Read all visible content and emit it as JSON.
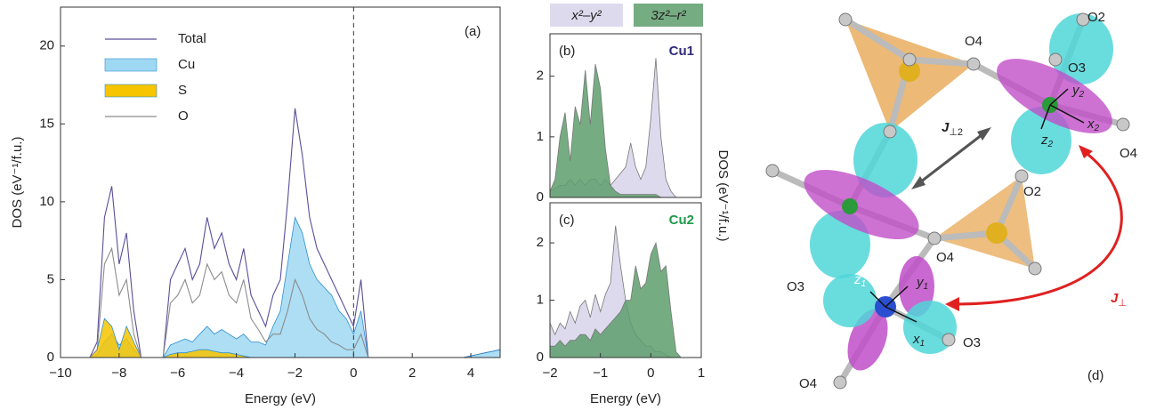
{
  "chart_data": [
    {
      "type": "area",
      "x_label": "Energy (eV)",
      "y_label": "DOS (eV⁻¹/f.u.)",
      "annotation": "(a)",
      "x": [
        -10,
        -9.75,
        -9.5,
        -9.25,
        -9,
        -8.75,
        -8.5,
        -8.25,
        -8,
        -7.75,
        -7.5,
        -7.25,
        -7,
        -6.75,
        -6.5,
        -6.25,
        -6,
        -5.75,
        -5.5,
        -5.25,
        -5,
        -4.75,
        -4.5,
        -4.25,
        -4,
        -3.75,
        -3.5,
        -3.25,
        -3,
        -2.75,
        -2.5,
        -2.25,
        -2,
        -1.75,
        -1.5,
        -1.25,
        -1,
        -0.75,
        -0.5,
        -0.25,
        0,
        0.25,
        0.5,
        0.75,
        1,
        1.25,
        1.5,
        1.75,
        2,
        2.25,
        2.5,
        2.75,
        3,
        3.25,
        3.5,
        3.75,
        4,
        4.25,
        4.5,
        4.75,
        5
      ],
      "series": [
        {
          "name": "Total",
          "color": "#5a4e9a",
          "fill": false,
          "values": [
            0,
            0,
            0,
            0,
            0,
            1,
            9,
            11,
            6,
            8,
            3,
            0,
            0,
            0,
            0,
            5,
            6,
            7,
            5,
            6,
            9,
            7,
            8,
            6,
            5,
            7,
            4,
            3,
            2,
            4,
            5,
            10,
            16,
            13,
            9,
            7,
            6,
            5,
            4,
            3,
            2,
            5,
            0,
            0,
            0,
            0,
            0,
            0,
            0,
            0,
            0,
            0,
            0,
            0,
            0,
            0,
            0.1,
            0.2,
            0.3,
            0.4,
            0.5
          ]
        },
        {
          "name": "Cu",
          "color": "#9fd8f2",
          "fill": true,
          "values": [
            0,
            0,
            0,
            0,
            0,
            0.2,
            1,
            1.5,
            0.8,
            1.2,
            0.5,
            0,
            0,
            0,
            0,
            0.8,
            1,
            1.2,
            1,
            1.5,
            2,
            1.5,
            1.8,
            1.5,
            1.2,
            1.5,
            1,
            1,
            0.8,
            2,
            3,
            6,
            9,
            8,
            6,
            5,
            4.5,
            4,
            3,
            2.5,
            1.5,
            3,
            0,
            0,
            0,
            0,
            0,
            0,
            0,
            0,
            0,
            0,
            0,
            0,
            0,
            0,
            0.1,
            0.2,
            0.3,
            0.4,
            0.5
          ]
        },
        {
          "name": "S",
          "color": "#f7c400",
          "fill": true,
          "values": [
            0,
            0,
            0,
            0,
            0,
            0.5,
            2.5,
            2,
            0.5,
            2,
            1,
            0,
            0,
            0,
            0,
            0.2,
            0.3,
            0.3,
            0.4,
            0.5,
            0.5,
            0.4,
            0.3,
            0.3,
            0.2,
            0.1,
            0,
            0,
            0,
            0,
            0,
            0,
            0,
            0,
            0,
            0,
            0,
            0,
            0,
            0,
            0,
            0,
            0,
            0,
            0,
            0,
            0,
            0,
            0,
            0,
            0,
            0,
            0,
            0,
            0,
            0,
            0,
            0,
            0,
            0,
            0
          ]
        },
        {
          "name": "O",
          "color": "#8c8c8c",
          "fill": false,
          "values": [
            0,
            0,
            0,
            0,
            0,
            0.5,
            6,
            7,
            4,
            5,
            1.5,
            0,
            0,
            0,
            0,
            3.5,
            4,
            5,
            3.5,
            4,
            6,
            5,
            5.5,
            4,
            3.5,
            5,
            2.5,
            1.8,
            1,
            1.5,
            1.5,
            3,
            5,
            4,
            2.5,
            1.8,
            1.5,
            1,
            0.8,
            0.5,
            0.5,
            1.5,
            0,
            0,
            0,
            0,
            0,
            0,
            0,
            0,
            0,
            0,
            0,
            0,
            0,
            0,
            0,
            0,
            0,
            0,
            0
          ]
        }
      ],
      "reference_line_x": 0,
      "xlim": [
        -10,
        5
      ],
      "ylim": [
        0,
        22.5
      ],
      "xticks": [
        {
          "value": -10,
          "label": "−10"
        },
        {
          "value": -8,
          "label": "−8"
        },
        {
          "value": -6,
          "label": "−6"
        },
        {
          "value": -4,
          "label": "−4"
        },
        {
          "value": -2,
          "label": "−2"
        },
        0,
        2,
        4
      ],
      "yticks": [
        0,
        5,
        10,
        15,
        20
      ],
      "legend": "upper left"
    },
    {
      "type": "area",
      "y_label": "DOS (eV⁻¹/f.u.)",
      "annotation": "(b)",
      "site": "Cu1",
      "site_color": "#2e2a7a",
      "x": [
        -2,
        -1.9,
        -1.8,
        -1.7,
        -1.6,
        -1.5,
        -1.4,
        -1.3,
        -1.2,
        -1.1,
        -1,
        -0.9,
        -0.8,
        -0.7,
        -0.6,
        -0.5,
        -0.4,
        -0.3,
        -0.2,
        -0.1,
        0,
        0.1,
        0.2,
        0.3,
        0.4,
        0.5,
        0.6,
        0.7,
        0.8,
        0.9,
        1
      ],
      "series": [
        {
          "name": "x²–y²",
          "color": "#d8d3ea",
          "fill": true,
          "values": [
            0.1,
            0.15,
            0.2,
            0.2,
            0.3,
            0.2,
            0.3,
            0.2,
            0.3,
            0.3,
            0.2,
            0.3,
            0.2,
            0.3,
            0.4,
            0.5,
            0.9,
            0.5,
            0.3,
            0.5,
            1.3,
            2.3,
            1,
            0.3,
            0.1,
            0,
            0,
            0,
            0,
            0,
            0
          ]
        },
        {
          "name": "3z²–r²",
          "color": "#5e9e6c",
          "fill": true,
          "values": [
            0.1,
            0.3,
            1,
            1.4,
            0.6,
            1.5,
            1.2,
            2.1,
            1.2,
            2.2,
            1.8,
            0.8,
            0.2,
            0.1,
            0.05,
            0.05,
            0.05,
            0.05,
            0.05,
            0.05,
            0.05,
            0.05,
            0,
            0,
            0,
            0,
            0,
            0,
            0,
            0,
            0
          ]
        }
      ],
      "xlim": [
        -2,
        1
      ],
      "ylim": [
        0,
        2.7
      ],
      "yticks": [
        0,
        1,
        2
      ],
      "legend": "top"
    },
    {
      "type": "area",
      "x_label": "Energy (eV)",
      "annotation": "(c)",
      "site": "Cu2",
      "site_color": "#1f9a4a",
      "x": [
        -2,
        -1.9,
        -1.8,
        -1.7,
        -1.6,
        -1.5,
        -1.4,
        -1.3,
        -1.2,
        -1.1,
        -1,
        -0.9,
        -0.8,
        -0.7,
        -0.6,
        -0.5,
        -0.4,
        -0.3,
        -0.2,
        -0.1,
        0,
        0.1,
        0.2,
        0.3,
        0.4,
        0.5,
        0.6,
        0.7,
        0.8,
        0.9,
        1
      ],
      "series": [
        {
          "color": "#d8d3ea",
          "fill": true,
          "values": [
            0.6,
            0.4,
            0.6,
            0.5,
            0.8,
            0.6,
            0.9,
            1,
            0.7,
            1.1,
            0.8,
            1.1,
            1.3,
            2.3,
            1.6,
            1,
            0.6,
            0.4,
            0.3,
            0.2,
            0.2,
            0.1,
            0.1,
            0.05,
            0,
            0,
            0,
            0,
            0,
            0,
            0
          ]
        },
        {
          "color": "#5e9e6c",
          "fill": true,
          "values": [
            0.2,
            0.2,
            0.3,
            0.2,
            0.3,
            0.3,
            0.4,
            0.4,
            0.3,
            0.5,
            0.4,
            0.5,
            0.6,
            0.7,
            0.8,
            1,
            1,
            1.6,
            1.2,
            1.3,
            1.8,
            2,
            1.5,
            1.6,
            0.8,
            0.1,
            0,
            0,
            0,
            0,
            0
          ]
        }
      ],
      "xlim": [
        -2,
        1
      ],
      "ylim": [
        0,
        2.7
      ],
      "xticks": [
        {
          "value": -2,
          "label": "−2"
        },
        {
          "value": -1,
          "label": "−1"
        },
        0,
        1
      ],
      "yticks": [
        0,
        1,
        2
      ]
    }
  ],
  "diagram": {
    "panel": "(d)",
    "atoms": [
      "O2",
      "O3",
      "O4",
      "O4",
      "O2",
      "O4",
      "O3",
      "O3",
      "O4"
    ],
    "couplings": [
      {
        "symbol": "J",
        "subscript": "⊥2"
      },
      {
        "symbol": "J",
        "subscript": "⊥"
      }
    ],
    "axes": [
      {
        "symbol": "z",
        "subscript": "2"
      },
      {
        "symbol": "y",
        "subscript": "2"
      },
      {
        "symbol": "x",
        "subscript": "2"
      },
      {
        "symbol": "z",
        "subscript": "1"
      },
      {
        "symbol": "y",
        "subscript": "1"
      },
      {
        "symbol": "x",
        "subscript": "1"
      }
    ]
  }
}
